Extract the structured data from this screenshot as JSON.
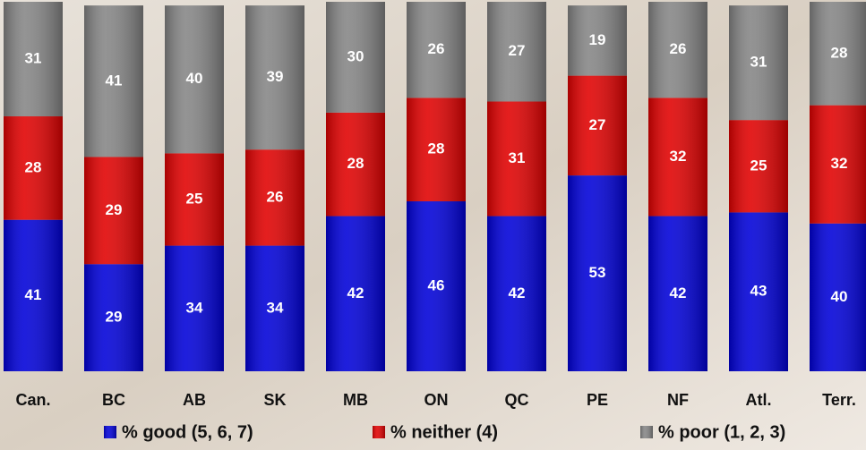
{
  "chart_data": {
    "type": "stacked_bar",
    "categories": [
      "Can.",
      "BC",
      "AB",
      "SK",
      "MB",
      "ON",
      "QC",
      "PE",
      "NF",
      "Atl.",
      "Terr."
    ],
    "series": [
      {
        "name": "% good (5, 6, 7)",
        "color": "#0000d8",
        "values": [
          41,
          29,
          34,
          34,
          42,
          46,
          42,
          53,
          42,
          43,
          40
        ]
      },
      {
        "name": "% neither (4)",
        "color": "#e00000",
        "values": [
          28,
          29,
          25,
          26,
          28,
          28,
          31,
          27,
          32,
          25,
          32
        ]
      },
      {
        "name": "% poor (1, 2, 3)",
        "color": "#858585",
        "values": [
          31,
          41,
          40,
          39,
          30,
          26,
          27,
          19,
          26,
          31,
          28
        ]
      }
    ],
    "legend": "bottom"
  }
}
